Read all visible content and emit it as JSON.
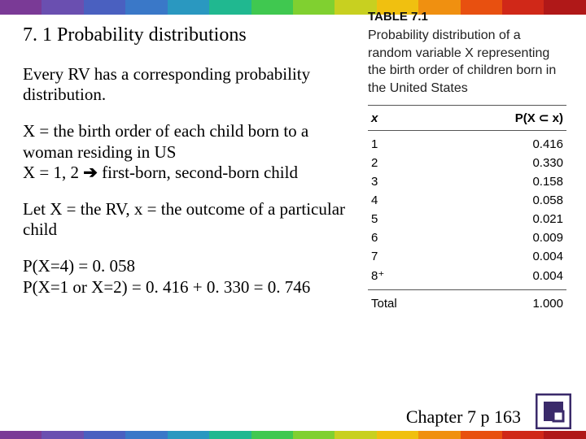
{
  "stripe_colors": [
    "#7a3a96",
    "#6a4fb0",
    "#4a60c0",
    "#3a78c8",
    "#2a98c0",
    "#20b890",
    "#40c850",
    "#80d030",
    "#c8d020",
    "#f0c010",
    "#f09010",
    "#e85010",
    "#d02818",
    "#b01818"
  ],
  "left": {
    "title": "7. 1  Probability distributions",
    "p1": "Every RV has a corresponding probability distribution.",
    "p2_line1": "X = the birth order of each child born to a woman residing in US",
    "p2_line2a": "X = 1, 2 ",
    "p2_arrow": "➔",
    "p2_line2b": " first-born, second-born child",
    "p3": "Let X = the RV, x = the outcome of a particular child",
    "p4_l1": "P(X=4) = 0. 058",
    "p4_l2": "P(X=1 or X=2) = 0. 416 + 0. 330 = 0. 746"
  },
  "table": {
    "label": "TABLE 7.1",
    "caption": "Probability distribution of a random variable X representing the birth order of children born in the United States",
    "header_x": "x",
    "header_p": "P(X ⊂ x)",
    "rows": [
      {
        "x": "1",
        "p": "0.416"
      },
      {
        "x": "2",
        "p": "0.330"
      },
      {
        "x": "3",
        "p": "0.158"
      },
      {
        "x": "4",
        "p": "0.058"
      },
      {
        "x": "5",
        "p": "0.021"
      },
      {
        "x": "6",
        "p": "0.009"
      },
      {
        "x": "7",
        "p": "0.004"
      },
      {
        "x": "8⁺",
        "p": "0.004"
      }
    ],
    "total_label": "Total",
    "total_value": "1.000"
  },
  "footer": "Chapter 7 p 163",
  "logo_color": "#3a2a6a"
}
